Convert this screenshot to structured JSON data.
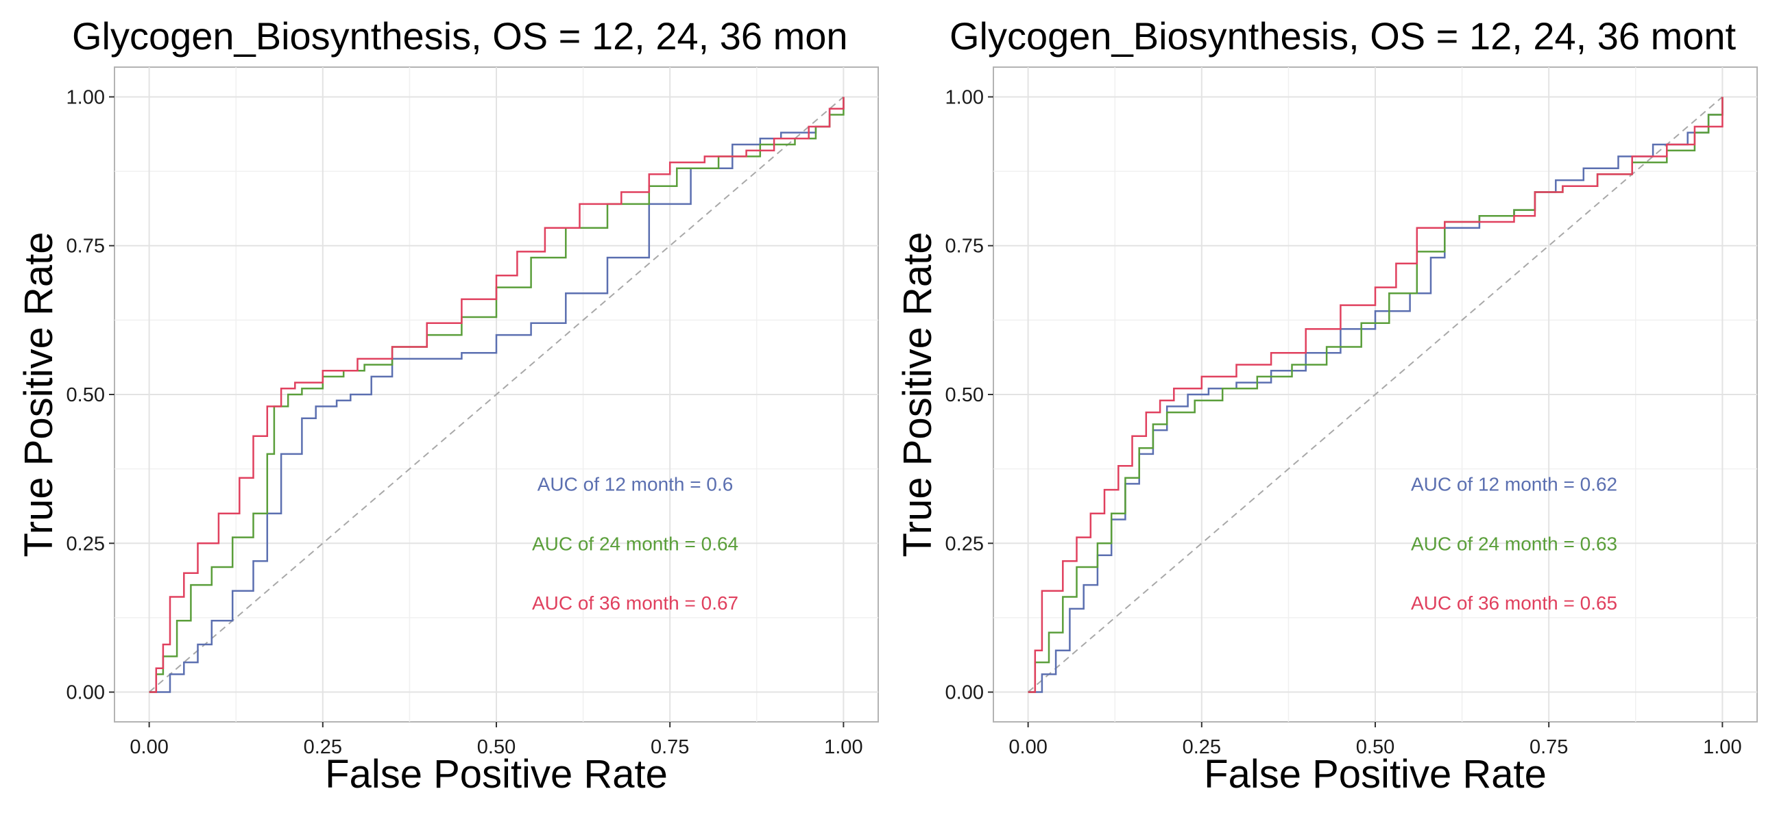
{
  "chart_data": [
    {
      "type": "line",
      "title": "Glycogen_Biosynthesis, OS = 12, 24, 36 mon",
      "xlabel": "False Positive Rate",
      "ylabel": "True Positive Rate",
      "xlim": [
        -0.05,
        1.05
      ],
      "ylim": [
        -0.05,
        1.05
      ],
      "x_ticks": [
        "0.00",
        "0.25",
        "0.50",
        "0.75",
        "1.00"
      ],
      "y_ticks": [
        "0.00",
        "0.25",
        "0.50",
        "0.75",
        "1.00"
      ],
      "grid": true,
      "series": [
        {
          "id": "12m",
          "color": "#5b6fb0",
          "x": [
            0.0,
            0.02,
            0.03,
            0.05,
            0.07,
            0.09,
            0.12,
            0.15,
            0.17,
            0.19,
            0.22,
            0.24,
            0.27,
            0.29,
            0.32,
            0.35,
            0.4,
            0.45,
            0.5,
            0.55,
            0.6,
            0.66,
            0.72,
            0.78,
            0.84,
            0.88,
            0.91,
            0.94,
            0.96,
            0.98,
            1.0
          ],
          "y": [
            0.0,
            0.0,
            0.03,
            0.05,
            0.08,
            0.12,
            0.17,
            0.22,
            0.3,
            0.4,
            0.46,
            0.48,
            0.49,
            0.5,
            0.53,
            0.56,
            0.56,
            0.57,
            0.6,
            0.62,
            0.67,
            0.73,
            0.82,
            0.88,
            0.92,
            0.93,
            0.94,
            0.94,
            0.95,
            0.98,
            1.0
          ]
        },
        {
          "id": "24m",
          "color": "#5a9e3a",
          "x": [
            0.0,
            0.01,
            0.02,
            0.04,
            0.06,
            0.09,
            0.12,
            0.15,
            0.17,
            0.18,
            0.2,
            0.22,
            0.25,
            0.28,
            0.31,
            0.35,
            0.4,
            0.45,
            0.5,
            0.55,
            0.6,
            0.66,
            0.72,
            0.76,
            0.82,
            0.88,
            0.93,
            0.96,
            0.98,
            1.0
          ],
          "y": [
            0.0,
            0.03,
            0.06,
            0.12,
            0.18,
            0.21,
            0.26,
            0.3,
            0.4,
            0.48,
            0.5,
            0.51,
            0.53,
            0.54,
            0.55,
            0.58,
            0.6,
            0.63,
            0.68,
            0.73,
            0.78,
            0.82,
            0.85,
            0.88,
            0.9,
            0.92,
            0.93,
            0.95,
            0.97,
            1.0
          ]
        },
        {
          "id": "36m",
          "color": "#e0405e",
          "x": [
            0.0,
            0.01,
            0.02,
            0.03,
            0.05,
            0.07,
            0.1,
            0.13,
            0.15,
            0.17,
            0.19,
            0.21,
            0.25,
            0.3,
            0.35,
            0.4,
            0.45,
            0.5,
            0.53,
            0.57,
            0.62,
            0.68,
            0.72,
            0.75,
            0.8,
            0.86,
            0.9,
            0.95,
            0.98,
            1.0
          ],
          "y": [
            0.0,
            0.04,
            0.08,
            0.16,
            0.2,
            0.25,
            0.3,
            0.36,
            0.43,
            0.48,
            0.51,
            0.52,
            0.54,
            0.56,
            0.58,
            0.62,
            0.66,
            0.7,
            0.74,
            0.78,
            0.82,
            0.84,
            0.87,
            0.89,
            0.9,
            0.91,
            0.93,
            0.95,
            0.98,
            1.0
          ]
        }
      ],
      "annotations": [
        {
          "id": "12m",
          "text": "AUC of  12  month =  0.6",
          "x": 0.7,
          "y": 0.35,
          "color": "#5b6fb0"
        },
        {
          "id": "24m",
          "text": "AUC of  24  month =  0.64",
          "x": 0.7,
          "y": 0.25,
          "color": "#5a9e3a"
        },
        {
          "id": "36m",
          "text": "AUC of  36  month =  0.67",
          "x": 0.7,
          "y": 0.15,
          "color": "#e0405e"
        }
      ],
      "diagonal": {
        "color": "#a8a8a8",
        "style": "dashed"
      }
    },
    {
      "type": "line",
      "title": "Glycogen_Biosynthesis, OS = 12, 24, 36 mont",
      "xlabel": "False Positive Rate",
      "ylabel": "True Positive Rate",
      "xlim": [
        -0.05,
        1.05
      ],
      "ylim": [
        -0.05,
        1.05
      ],
      "x_ticks": [
        "0.00",
        "0.25",
        "0.50",
        "0.75",
        "1.00"
      ],
      "y_ticks": [
        "0.00",
        "0.25",
        "0.50",
        "0.75",
        "1.00"
      ],
      "grid": true,
      "series": [
        {
          "id": "12m",
          "color": "#5b6fb0",
          "x": [
            0.0,
            0.02,
            0.04,
            0.06,
            0.08,
            0.1,
            0.12,
            0.14,
            0.16,
            0.18,
            0.2,
            0.23,
            0.26,
            0.3,
            0.35,
            0.4,
            0.45,
            0.5,
            0.55,
            0.58,
            0.6,
            0.65,
            0.7,
            0.73,
            0.76,
            0.8,
            0.85,
            0.9,
            0.95,
            0.98,
            1.0
          ],
          "y": [
            0.0,
            0.03,
            0.07,
            0.14,
            0.18,
            0.23,
            0.29,
            0.35,
            0.4,
            0.44,
            0.48,
            0.5,
            0.51,
            0.52,
            0.54,
            0.57,
            0.61,
            0.64,
            0.67,
            0.73,
            0.78,
            0.8,
            0.81,
            0.84,
            0.86,
            0.88,
            0.9,
            0.92,
            0.94,
            0.97,
            1.0
          ]
        },
        {
          "id": "24m",
          "color": "#5a9e3a",
          "x": [
            0.0,
            0.01,
            0.03,
            0.05,
            0.07,
            0.1,
            0.12,
            0.14,
            0.16,
            0.18,
            0.2,
            0.24,
            0.28,
            0.33,
            0.38,
            0.43,
            0.48,
            0.52,
            0.56,
            0.6,
            0.65,
            0.7,
            0.73,
            0.77,
            0.82,
            0.87,
            0.92,
            0.96,
            0.98,
            1.0
          ],
          "y": [
            0.0,
            0.05,
            0.1,
            0.16,
            0.21,
            0.25,
            0.3,
            0.36,
            0.41,
            0.45,
            0.47,
            0.49,
            0.51,
            0.53,
            0.55,
            0.58,
            0.62,
            0.67,
            0.74,
            0.79,
            0.8,
            0.81,
            0.84,
            0.85,
            0.87,
            0.89,
            0.91,
            0.94,
            0.97,
            1.0
          ]
        },
        {
          "id": "36m",
          "color": "#e0405e",
          "x": [
            0.0,
            0.01,
            0.02,
            0.05,
            0.07,
            0.09,
            0.11,
            0.13,
            0.15,
            0.17,
            0.19,
            0.21,
            0.25,
            0.3,
            0.35,
            0.4,
            0.45,
            0.5,
            0.53,
            0.56,
            0.6,
            0.65,
            0.7,
            0.73,
            0.77,
            0.82,
            0.87,
            0.92,
            0.96,
            1.0
          ],
          "y": [
            0.0,
            0.07,
            0.17,
            0.22,
            0.26,
            0.3,
            0.34,
            0.38,
            0.43,
            0.47,
            0.49,
            0.51,
            0.53,
            0.55,
            0.57,
            0.61,
            0.65,
            0.68,
            0.72,
            0.78,
            0.79,
            0.79,
            0.8,
            0.84,
            0.85,
            0.87,
            0.9,
            0.92,
            0.95,
            1.0
          ]
        }
      ],
      "annotations": [
        {
          "id": "12m",
          "text": "AUC of  12  month =  0.62",
          "x": 0.7,
          "y": 0.35,
          "color": "#5b6fb0"
        },
        {
          "id": "24m",
          "text": "AUC of  24  month =  0.63",
          "x": 0.7,
          "y": 0.25,
          "color": "#5a9e3a"
        },
        {
          "id": "36m",
          "text": "AUC of  36  month =  0.65",
          "x": 0.7,
          "y": 0.15,
          "color": "#e0405e"
        }
      ],
      "diagonal": {
        "color": "#a8a8a8",
        "style": "dashed"
      }
    }
  ]
}
